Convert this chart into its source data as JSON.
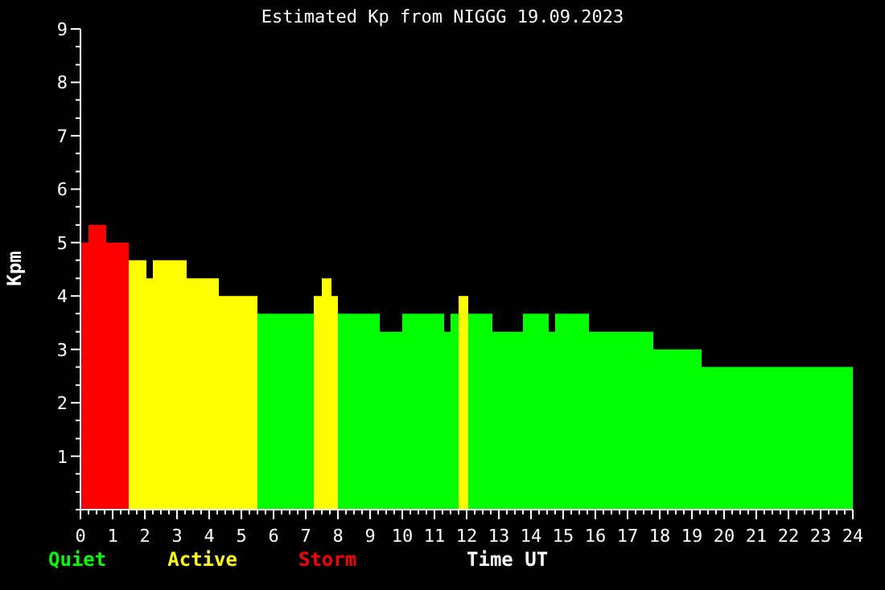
{
  "chart_data": {
    "type": "histogram",
    "title": "Estimated Kp from NIGGG 19.09.2023",
    "xlabel": "Time UT",
    "ylabel": "Kpm",
    "bins": [
      0,
      0.25,
      0.8,
      1.5,
      2.05,
      2.25,
      3.3,
      4.3,
      5.5,
      7.25,
      7.5,
      7.8,
      8,
      9.3,
      10,
      11.3,
      11.5,
      11.75,
      12.05,
      12.8,
      13.75,
      14.55,
      14.75,
      15.8,
      17.8,
      19.3,
      24
    ],
    "series": [
      {
        "name": "Quiet",
        "color": "#00ff00",
        "values": [
          null,
          null,
          null,
          null,
          null,
          null,
          null,
          null,
          3.67,
          null,
          null,
          null,
          3.67,
          3.33,
          3.67,
          3.33,
          3.67,
          null,
          3.67,
          3.33,
          3.67,
          3.33,
          3.67,
          3.33,
          3,
          2.67
        ]
      },
      {
        "name": "Active",
        "color": "#ffff00",
        "values": [
          null,
          null,
          null,
          4.67,
          4.33,
          4.67,
          4.33,
          4,
          null,
          4,
          4.33,
          4,
          null,
          null,
          null,
          null,
          null,
          4,
          null,
          null,
          null,
          null,
          null,
          null,
          null,
          null
        ]
      },
      {
        "name": "Storm",
        "color": "#ff0000",
        "values": [
          5,
          5.33,
          5,
          null,
          null,
          null,
          null,
          null,
          null,
          null,
          null,
          null,
          null,
          null,
          null,
          null,
          null,
          null,
          null,
          null,
          null,
          null,
          null,
          null,
          null,
          null
        ]
      }
    ],
    "legend": "bottom left",
    "xlim": [
      0,
      24
    ],
    "ylim": [
      0,
      9
    ],
    "xticks": [
      0,
      {
        "value": 0.25,
        "label": null
      },
      {
        "value": 0.5,
        "label": null
      },
      {
        "value": 0.75,
        "label": null
      },
      1,
      {
        "value": 1.25,
        "label": null
      },
      {
        "value": 1.5,
        "label": null
      },
      {
        "value": 1.75,
        "label": null
      },
      2,
      {
        "value": 2.25,
        "label": null
      },
      {
        "value": 2.5,
        "label": null
      },
      {
        "value": 2.75,
        "label": null
      },
      3,
      {
        "value": 3.25,
        "label": null
      },
      {
        "value": 3.5,
        "label": null
      },
      {
        "value": 3.75,
        "label": null
      },
      4,
      {
        "value": 4.25,
        "label": null
      },
      {
        "value": 4.5,
        "label": null
      },
      {
        "value": 4.75,
        "label": null
      },
      5,
      {
        "value": 5.25,
        "label": null
      },
      {
        "value": 5.5,
        "label": null
      },
      {
        "value": 5.75,
        "label": null
      },
      6,
      {
        "value": 6.25,
        "label": null
      },
      {
        "value": 6.5,
        "label": null
      },
      {
        "value": 6.75,
        "label": null
      },
      7,
      {
        "value": 7.25,
        "label": null
      },
      {
        "value": 7.5,
        "label": null
      },
      {
        "value": 7.75,
        "label": null
      },
      8,
      {
        "value": 8.25,
        "label": null
      },
      {
        "value": 8.5,
        "label": null
      },
      {
        "value": 8.75,
        "label": null
      },
      9,
      {
        "value": 9.25,
        "label": null
      },
      {
        "value": 9.5,
        "label": null
      },
      {
        "value": 9.75,
        "label": null
      },
      10,
      {
        "value": 10.25,
        "label": null
      },
      {
        "value": 10.5,
        "label": null
      },
      {
        "value": 10.75,
        "label": null
      },
      11,
      {
        "value": 11.25,
        "label": null
      },
      {
        "value": 11.5,
        "label": null
      },
      {
        "value": 11.75,
        "label": null
      },
      12,
      {
        "value": 12.25,
        "label": null
      },
      {
        "value": 12.5,
        "label": null
      },
      {
        "value": 12.75,
        "label": null
      },
      13,
      {
        "value": 13.25,
        "label": null
      },
      {
        "value": 13.5,
        "label": null
      },
      {
        "value": 13.75,
        "label": null
      },
      14,
      {
        "value": 14.25,
        "label": null
      },
      {
        "value": 14.5,
        "label": null
      },
      {
        "value": 14.75,
        "label": null
      },
      15,
      {
        "value": 15.25,
        "label": null
      },
      {
        "value": 15.5,
        "label": null
      },
      {
        "value": 15.75,
        "label": null
      },
      16,
      {
        "value": 16.25,
        "label": null
      },
      {
        "value": 16.5,
        "label": null
      },
      {
        "value": 16.75,
        "label": null
      },
      17,
      {
        "value": 17.25,
        "label": null
      },
      {
        "value": 17.5,
        "label": null
      },
      {
        "value": 17.75,
        "label": null
      },
      18,
      {
        "value": 18.25,
        "label": null
      },
      {
        "value": 18.5,
        "label": null
      },
      {
        "value": 18.75,
        "label": null
      },
      19,
      {
        "value": 19.25,
        "label": null
      },
      {
        "value": 19.5,
        "label": null
      },
      {
        "value": 19.75,
        "label": null
      },
      20,
      {
        "value": 20.25,
        "label": null
      },
      {
        "value": 20.5,
        "label": null
      },
      {
        "value": 20.75,
        "label": null
      },
      21,
      {
        "value": 21.25,
        "label": null
      },
      {
        "value": 21.5,
        "label": null
      },
      {
        "value": 21.75,
        "label": null
      },
      22,
      {
        "value": 22.25,
        "label": null
      },
      {
        "value": 22.5,
        "label": null
      },
      {
        "value": 22.75,
        "label": null
      },
      23,
      {
        "value": 23.25,
        "label": null
      },
      {
        "value": 23.5,
        "label": null
      },
      {
        "value": 23.75,
        "label": null
      },
      24
    ],
    "yticks": [
      {
        "value": 0,
        "label": null
      },
      {
        "value": 0.33,
        "label": null
      },
      {
        "value": 0.67,
        "label": null
      },
      1,
      {
        "value": 1.33,
        "label": null
      },
      {
        "value": 1.67,
        "label": null
      },
      2,
      {
        "value": 2.33,
        "label": null
      },
      {
        "value": 2.67,
        "label": null
      },
      3,
      {
        "value": 3.33,
        "label": null
      },
      {
        "value": 3.67,
        "label": null
      },
      4,
      {
        "value": 4.33,
        "label": null
      },
      {
        "value": 4.67,
        "label": null
      },
      5,
      {
        "value": 5.33,
        "label": null
      },
      {
        "value": 5.67,
        "label": null
      },
      6,
      {
        "value": 6.33,
        "label": null
      },
      {
        "value": 6.67,
        "label": null
      },
      7,
      {
        "value": 7.33,
        "label": null
      },
      {
        "value": 7.67,
        "label": null
      },
      8,
      {
        "value": 8.33,
        "label": null
      },
      {
        "value": 8.67,
        "label": null
      },
      9
    ]
  }
}
